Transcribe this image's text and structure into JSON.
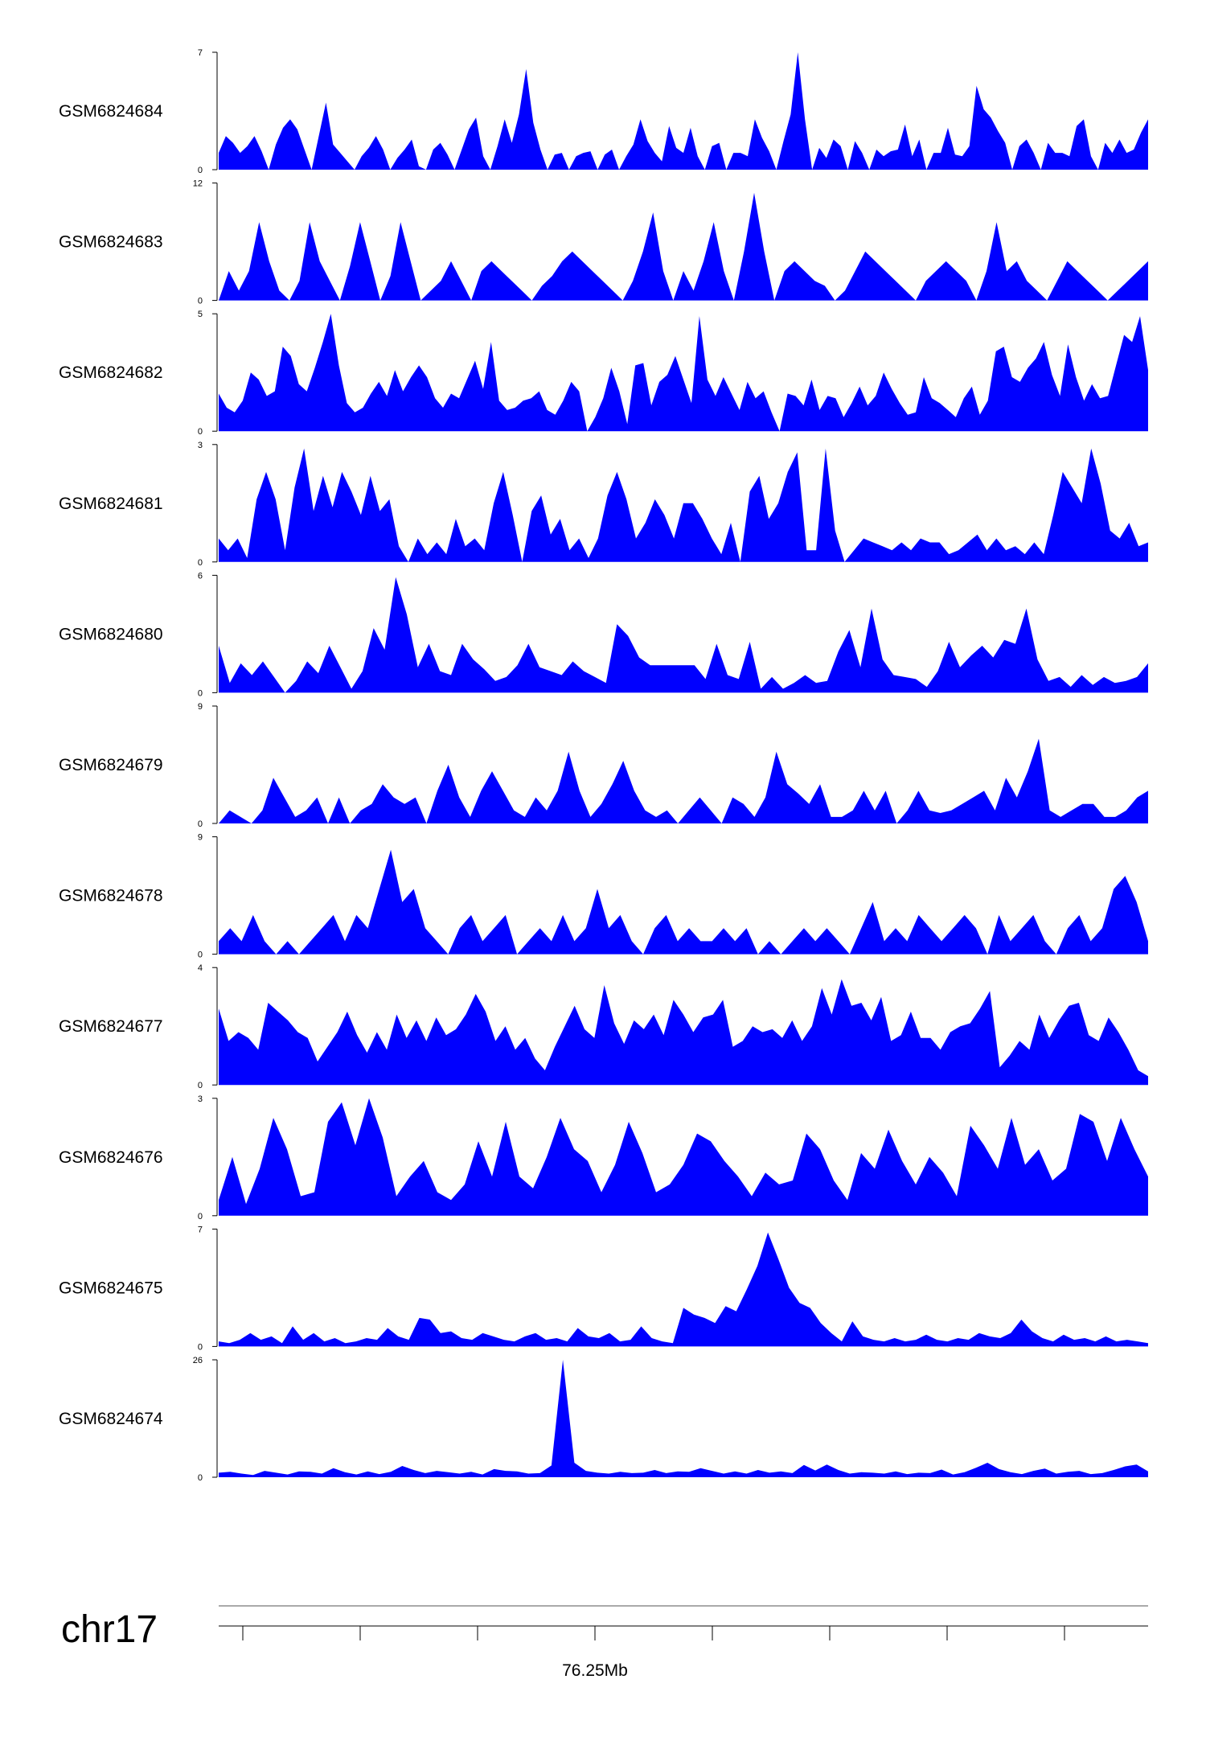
{
  "chart_data": {
    "type": "area",
    "title": "",
    "fill_color": "#0000ff",
    "chromosome": "chr17",
    "x_axis": {
      "label": "76.25Mb",
      "label_tick_index": 3,
      "tick_count": 8
    },
    "tracks": [
      {
        "name": "GSM6824684",
        "ymax": 7,
        "yticks": [
          "7",
          "0"
        ],
        "values": [
          1,
          2,
          1.6,
          1,
          1.4,
          2,
          1.1,
          0,
          1.5,
          2.5,
          3,
          2.4,
          1.2,
          0,
          2,
          4,
          1.5,
          1,
          0.5,
          0,
          0.8,
          1.3,
          2,
          1.2,
          0,
          0.7,
          1.2,
          1.8,
          0.2,
          0,
          1.2,
          1.6,
          0.9,
          0,
          1.2,
          2.4,
          3.1,
          0.8,
          0,
          1.4,
          3,
          1.6,
          3.3,
          6,
          2.8,
          1.2,
          0,
          0.9,
          1,
          0,
          0.8,
          1,
          1.1,
          0,
          0.9,
          1.2,
          0,
          0.8,
          1.5,
          3,
          1.7,
          1,
          0.5,
          2.6,
          1.3,
          1,
          2.5,
          0.8,
          0,
          1.4,
          1.6,
          0,
          1,
          1,
          0.8,
          3,
          1.9,
          1.1,
          0,
          1.7,
          3.3,
          7,
          3,
          0,
          1.3,
          0.7,
          1.8,
          1.4,
          0,
          1.7,
          1,
          0,
          1.2,
          0.8,
          1.1,
          1.2,
          2.7,
          0.8,
          1.8,
          0,
          1,
          1,
          2.5,
          0.9,
          0.8,
          1.4,
          5,
          3.6,
          3.1,
          2.3,
          1.6,
          0,
          1.4,
          1.8,
          1,
          0,
          1.6,
          1,
          1,
          0.8,
          2.6,
          3,
          0.8,
          0,
          1.6,
          1,
          1.8,
          1,
          1.2,
          2.2,
          3
        ]
      },
      {
        "name": "GSM6824683",
        "ymax": 12,
        "yticks": [
          "12",
          "0"
        ],
        "values": [
          0,
          3,
          1,
          3,
          8,
          4,
          1,
          0,
          2,
          8,
          4,
          2,
          0,
          3.5,
          8,
          4,
          0,
          2.5,
          8,
          4,
          0,
          1,
          2,
          4,
          2,
          0,
          3,
          4,
          3,
          2,
          1,
          0,
          1.5,
          2.5,
          4,
          5,
          4,
          3,
          2,
          1,
          0,
          2,
          5,
          9,
          3,
          0,
          3,
          1,
          4,
          8,
          3,
          0,
          5,
          11,
          5,
          0,
          3,
          4,
          3,
          2,
          1.5,
          0,
          1,
          3,
          5,
          4,
          3,
          2,
          1,
          0,
          2,
          3,
          4,
          3,
          2,
          0,
          3,
          8,
          3,
          4,
          2,
          1,
          0,
          2,
          4,
          3,
          2,
          1,
          0,
          1,
          2,
          3,
          4
        ]
      },
      {
        "name": "GSM6824682",
        "ymax": 5,
        "yticks": [
          "5",
          "0"
        ],
        "values": [
          1.6,
          1,
          0.8,
          1.3,
          2.5,
          2.2,
          1.5,
          1.7,
          3.6,
          3.2,
          2,
          1.7,
          2.7,
          3.8,
          5,
          2.8,
          1.2,
          0.8,
          1,
          1.6,
          2.1,
          1.5,
          2.6,
          1.7,
          2.3,
          2.8,
          2.3,
          1.4,
          1,
          1.6,
          1.4,
          2.2,
          3,
          1.8,
          3.8,
          1.3,
          0.9,
          1,
          1.3,
          1.4,
          1.7,
          0.9,
          0.7,
          1.3,
          2.1,
          1.7,
          0,
          0.6,
          1.4,
          2.7,
          1.7,
          0.3,
          2.8,
          2.9,
          1.1,
          2.1,
          2.4,
          3.2,
          2.2,
          1.2,
          4.9,
          2.2,
          1.5,
          2.3,
          1.6,
          0.9,
          2.1,
          1.4,
          1.7,
          0.8,
          0,
          1.6,
          1.5,
          1.1,
          2.2,
          0.9,
          1.5,
          1.4,
          0.6,
          1.2,
          1.9,
          1.1,
          1.5,
          2.5,
          1.8,
          1.2,
          0.7,
          0.8,
          2.3,
          1.4,
          1.2,
          0.9,
          0.6,
          1.4,
          1.9,
          0.7,
          1.3,
          3.4,
          3.6,
          2.3,
          2.1,
          2.7,
          3.1,
          3.8,
          2.4,
          1.5,
          3.7,
          2.3,
          1.3,
          2,
          1.4,
          1.5,
          2.8,
          4.1,
          3.8,
          4.9,
          2.6
        ]
      },
      {
        "name": "GSM6824681",
        "ymax": 3,
        "yticks": [
          "3",
          "0"
        ],
        "values": [
          0.6,
          0.3,
          0.6,
          0.1,
          1.6,
          2.3,
          1.6,
          0.3,
          1.9,
          2.9,
          1.3,
          2.2,
          1.4,
          2.3,
          1.8,
          1.2,
          2.2,
          1.3,
          1.6,
          0.4,
          0,
          0.6,
          0.2,
          0.5,
          0.2,
          1.1,
          0.4,
          0.6,
          0.3,
          1.5,
          2.3,
          1.2,
          0,
          1.3,
          1.7,
          0.7,
          1.1,
          0.3,
          0.6,
          0.1,
          0.6,
          1.7,
          2.3,
          1.6,
          0.6,
          1,
          1.6,
          1.2,
          0.6,
          1.5,
          1.5,
          1.1,
          0.6,
          0.2,
          1,
          0,
          1.8,
          2.2,
          1.1,
          1.5,
          2.3,
          2.8,
          0.3,
          0.3,
          2.9,
          0.8,
          0,
          0.3,
          0.6,
          0.5,
          0.4,
          0.3,
          0.5,
          0.3,
          0.6,
          0.5,
          0.5,
          0.2,
          0.3,
          0.5,
          0.7,
          0.3,
          0.6,
          0.3,
          0.4,
          0.2,
          0.5,
          0.2,
          1.2,
          2.3,
          1.9,
          1.5,
          2.9,
          2,
          0.8,
          0.6,
          1,
          0.4,
          0.5
        ]
      },
      {
        "name": "GSM6824680",
        "ymax": 6,
        "yticks": [
          "6",
          "0"
        ],
        "values": [
          2.4,
          0.5,
          1.5,
          0.9,
          1.6,
          0.8,
          0,
          0.6,
          1.6,
          1,
          2.4,
          1.3,
          0.2,
          1.1,
          3.3,
          2.2,
          5.9,
          4,
          1.3,
          2.5,
          1.1,
          0.9,
          2.5,
          1.7,
          1.2,
          0.6,
          0.8,
          1.4,
          2.5,
          1.3,
          1.1,
          0.9,
          1.6,
          1.1,
          0.8,
          0.5,
          3.5,
          2.9,
          1.8,
          1.4,
          1.4,
          1.4,
          1.4,
          1.4,
          0.7,
          2.5,
          0.9,
          0.7,
          2.6,
          0.2,
          0.8,
          0.2,
          0.5,
          0.9,
          0.5,
          0.6,
          2.1,
          3.2,
          1.3,
          4.3,
          1.7,
          0.9,
          0.8,
          0.7,
          0.3,
          1.1,
          2.6,
          1.3,
          1.9,
          2.4,
          1.8,
          2.7,
          2.5,
          4.3,
          1.7,
          0.6,
          0.8,
          0.3,
          0.9,
          0.4,
          0.8,
          0.5,
          0.6,
          0.8,
          1.5
        ]
      },
      {
        "name": "GSM6824679",
        "ymax": 9,
        "yticks": [
          "9",
          "0"
        ],
        "values": [
          0,
          1,
          0.5,
          0,
          1,
          3.5,
          2,
          0.5,
          1,
          2,
          0,
          2,
          0,
          1,
          1.5,
          3,
          2,
          1.5,
          2,
          0,
          2.5,
          4.5,
          2,
          0.5,
          2.5,
          4,
          2.5,
          1,
          0.5,
          2,
          1,
          2.5,
          5.5,
          2.5,
          0.5,
          1.5,
          3,
          4.8,
          2.5,
          1,
          0.5,
          1,
          0,
          1,
          2,
          1,
          0,
          2,
          1.5,
          0.5,
          2,
          5.5,
          3,
          2.3,
          1.5,
          3,
          0.5,
          0.5,
          1,
          2.5,
          1,
          2.5,
          0,
          1,
          2.5,
          1,
          0.8,
          1,
          1.5,
          2,
          2.5,
          1,
          3.5,
          2,
          4,
          6.5,
          1,
          0.5,
          1,
          1.5,
          1.5,
          0.5,
          0.5,
          1,
          2,
          2.5
        ]
      },
      {
        "name": "GSM6824678",
        "ymax": 9,
        "yticks": [
          "9",
          "0"
        ],
        "values": [
          1,
          2,
          1,
          3,
          1,
          0,
          1,
          0,
          1,
          2,
          3,
          1,
          3,
          2,
          5,
          8,
          4,
          5,
          2,
          1,
          0,
          2,
          3,
          1,
          2,
          3,
          0,
          1,
          2,
          1,
          3,
          1,
          2,
          5,
          2,
          3,
          1,
          0,
          2,
          3,
          1,
          2,
          1,
          1,
          2,
          1,
          2,
          0,
          1,
          0,
          1,
          2,
          1,
          2,
          1,
          0,
          2,
          4,
          1,
          2,
          1,
          3,
          2,
          1,
          2,
          3,
          2,
          0,
          3,
          1,
          2,
          3,
          1,
          0,
          2,
          3,
          1,
          2,
          5,
          6,
          4,
          1
        ]
      },
      {
        "name": "GSM6824677",
        "ymax": 4,
        "yticks": [
          "4",
          "0"
        ],
        "values": [
          2.6,
          1.5,
          1.8,
          1.6,
          1.2,
          2.8,
          2.5,
          2.2,
          1.8,
          1.6,
          0.8,
          1.3,
          1.8,
          2.5,
          1.7,
          1.1,
          1.8,
          1.2,
          2.4,
          1.6,
          2.2,
          1.5,
          2.3,
          1.7,
          1.9,
          2.4,
          3.1,
          2.5,
          1.5,
          2,
          1.2,
          1.6,
          0.9,
          0.5,
          1.3,
          2,
          2.7,
          1.9,
          1.6,
          3.4,
          2.1,
          1.4,
          2.2,
          1.9,
          2.4,
          1.7,
          2.9,
          2.4,
          1.8,
          2.3,
          2.4,
          2.9,
          1.3,
          1.5,
          2,
          1.8,
          1.9,
          1.6,
          2.2,
          1.5,
          2,
          3.3,
          2.4,
          3.6,
          2.7,
          2.8,
          2.2,
          3,
          1.5,
          1.7,
          2.5,
          1.6,
          1.6,
          1.2,
          1.8,
          2,
          2.1,
          2.6,
          3.2,
          0.6,
          1,
          1.5,
          1.2,
          2.4,
          1.6,
          2.2,
          2.7,
          2.8,
          1.7,
          1.5,
          2.3,
          1.8,
          1.2,
          0.5,
          0.3
        ]
      },
      {
        "name": "GSM6824676",
        "ymax": 3,
        "yticks": [
          "3",
          "0"
        ],
        "values": [
          0.4,
          1.5,
          0.3,
          1.2,
          2.5,
          1.7,
          0.5,
          0.6,
          2.4,
          2.9,
          1.8,
          3,
          2,
          0.5,
          1,
          1.4,
          0.6,
          0.4,
          0.8,
          1.9,
          1,
          2.4,
          1,
          0.7,
          1.5,
          2.5,
          1.7,
          1.4,
          0.6,
          1.3,
          2.4,
          1.6,
          0.6,
          0.8,
          1.3,
          2.1,
          1.9,
          1.4,
          1,
          0.5,
          1.1,
          0.8,
          0.9,
          2.1,
          1.7,
          0.9,
          0.4,
          1.6,
          1.2,
          2.2,
          1.4,
          0.8,
          1.5,
          1.1,
          0.5,
          2.3,
          1.8,
          1.2,
          2.5,
          1.3,
          1.7,
          0.9,
          1.2,
          2.6,
          2.4,
          1.4,
          2.5,
          1.7,
          1
        ]
      },
      {
        "name": "GSM6824675",
        "ymax": 7,
        "yticks": [
          "7",
          "0"
        ],
        "values": [
          0.3,
          0.2,
          0.4,
          0.8,
          0.4,
          0.6,
          0.2,
          1.2,
          0.4,
          0.8,
          0.3,
          0.5,
          0.2,
          0.3,
          0.5,
          0.4,
          1.1,
          0.6,
          0.4,
          1.7,
          1.6,
          0.8,
          0.9,
          0.5,
          0.4,
          0.8,
          0.6,
          0.4,
          0.3,
          0.6,
          0.8,
          0.4,
          0.5,
          0.3,
          1.1,
          0.6,
          0.5,
          0.8,
          0.3,
          0.4,
          1.2,
          0.5,
          0.3,
          0.2,
          2.3,
          1.9,
          1.7,
          1.4,
          2.4,
          2.1,
          3.4,
          4.8,
          6.8,
          5.2,
          3.5,
          2.6,
          2.3,
          1.4,
          0.8,
          0.3,
          1.5,
          0.6,
          0.4,
          0.3,
          0.5,
          0.3,
          0.4,
          0.7,
          0.4,
          0.3,
          0.5,
          0.4,
          0.8,
          0.6,
          0.5,
          0.8,
          1.6,
          0.9,
          0.5,
          0.3,
          0.7,
          0.4,
          0.5,
          0.3,
          0.6,
          0.3,
          0.4,
          0.3,
          0.2
        ]
      },
      {
        "name": "GSM6824674",
        "ymax": 26,
        "yticks": [
          "26",
          "0"
        ],
        "values": [
          1,
          1.2,
          0.8,
          0.5,
          1.4,
          1,
          0.6,
          1.3,
          1.2,
          0.8,
          2,
          1.1,
          0.6,
          1.3,
          0.7,
          1.2,
          2.5,
          1.6,
          0.9,
          1.4,
          1.1,
          0.8,
          1.2,
          0.6,
          1.8,
          1.4,
          1.3,
          0.8,
          0.9,
          2.6,
          26,
          3.2,
          1.4,
          1,
          0.8,
          1.2,
          0.9,
          1,
          1.6,
          0.9,
          1.3,
          1.2,
          2,
          1.4,
          0.8,
          1.3,
          0.8,
          1.6,
          1,
          1.3,
          0.9,
          2.7,
          1.5,
          2.8,
          1.6,
          0.8,
          1.1,
          1,
          0.8,
          1.3,
          0.7,
          1,
          0.9,
          1.7,
          0.6,
          1.1,
          2.1,
          3.2,
          1.8,
          1.1,
          0.7,
          1.4,
          1.9,
          0.8,
          1.2,
          1.4,
          0.7,
          0.9,
          1.6,
          2.4,
          2.8,
          1.3
        ]
      }
    ]
  }
}
